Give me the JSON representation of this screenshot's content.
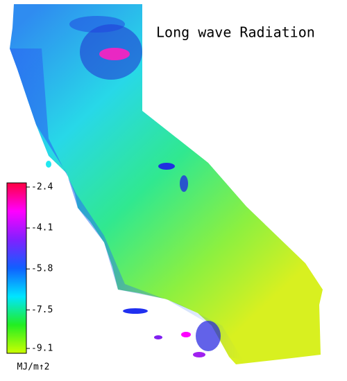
{
  "title": "Long wave Radiation",
  "colorbar": {
    "lim": [
      -9.1,
      -2.4
    ],
    "ticks": [
      -2.4,
      -4.1,
      -5.8,
      -7.5,
      -9.1
    ],
    "colors": [
      "#ccff00",
      "#22ee22",
      "#00e5ff",
      "#1060ff",
      "#8020ff",
      "#ff00ff",
      "#ff0040"
    ],
    "label": "MJ/m↑2"
  }
}
